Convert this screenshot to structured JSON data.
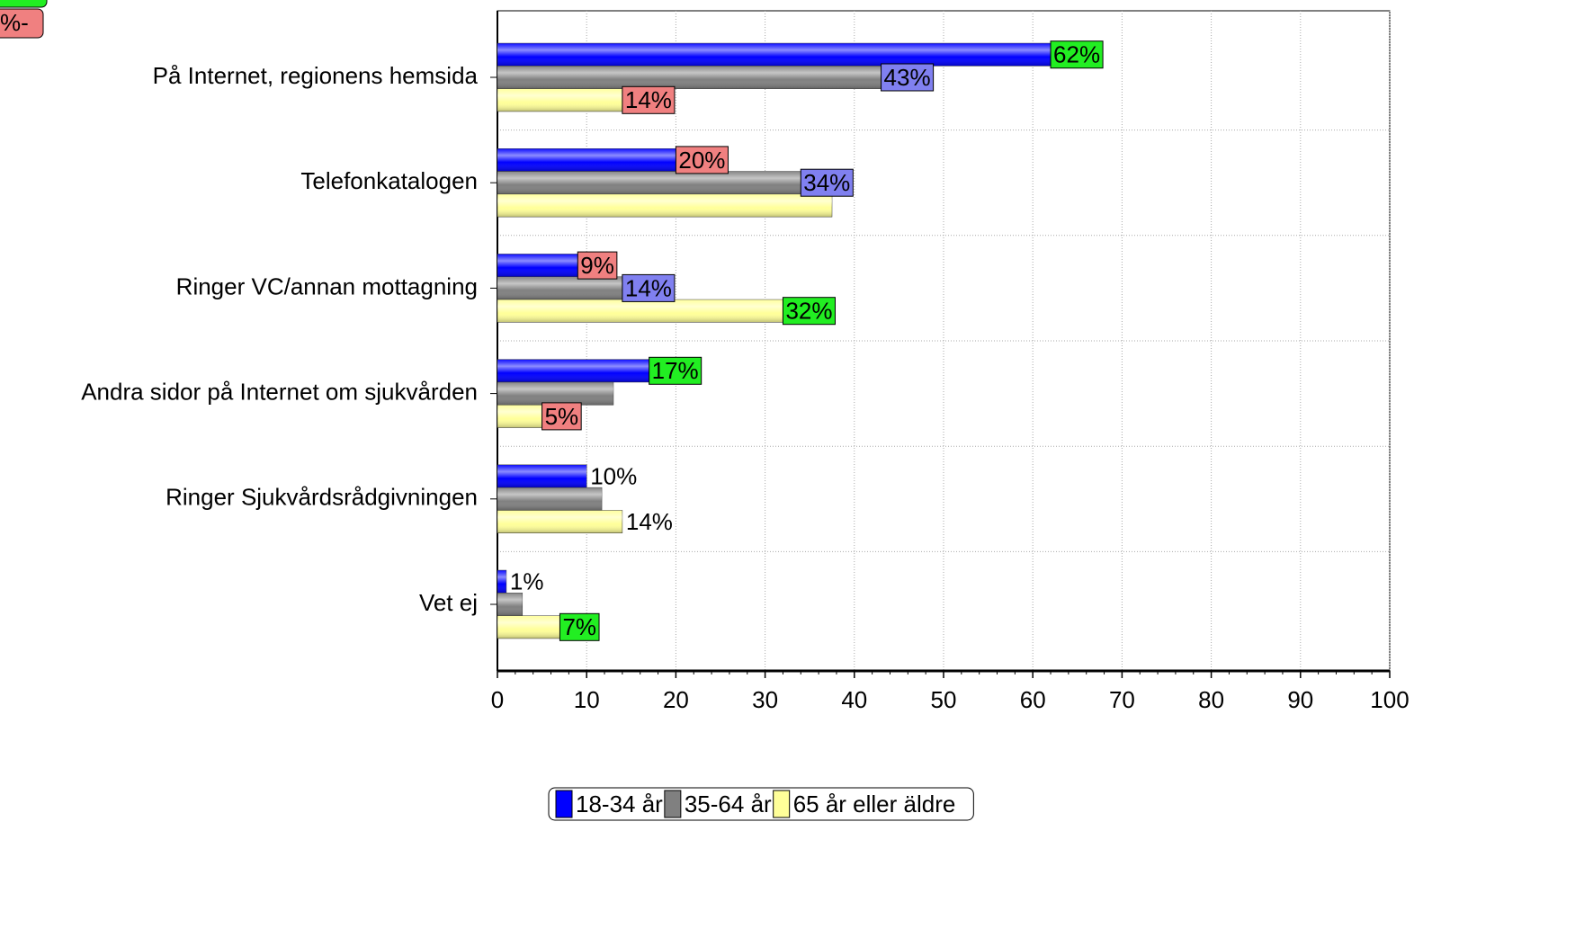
{
  "chart_data": {
    "type": "bar",
    "orientation": "horizontal",
    "categories": [
      "På Internet, regionens hemsida",
      "Telefonkatalogen",
      "Ringer VC/annan mottagning",
      "Andra sidor på Internet om sjukvården",
      "Ringer Sjukvårdsrådgivningen",
      "Vet ej"
    ],
    "series": [
      {
        "name": "18-34 år",
        "color": "#0000ff",
        "values": [
          62,
          20,
          9,
          17,
          10,
          1
        ],
        "value_labels": [
          "62%",
          "20%",
          "9%",
          "17%",
          "10%",
          "1%"
        ],
        "label_fills": [
          "#22ee22",
          "#f08080",
          "#f08080",
          "#22ee22",
          null,
          null
        ],
        "label_text_colors": [
          "#000000",
          "#000000",
          "#000000",
          "#000000",
          "#0000ff",
          "#0000ff"
        ]
      },
      {
        "name": "35-64 år",
        "color": "#808080",
        "values": [
          43,
          34,
          14,
          13,
          11.7,
          2.8
        ],
        "value_labels": [
          "43%",
          "34%",
          "14%",
          null,
          null,
          null
        ],
        "label_fills": [
          "#8080f0",
          "#8080f0",
          "#8080f0",
          null,
          null,
          null
        ],
        "label_text_colors": [
          "#ffffff",
          "#ffffff",
          "#ffffff",
          null,
          null,
          null
        ]
      },
      {
        "name": "65 år eller äldre",
        "color": "#ffff99",
        "values": [
          14,
          37.5,
          32,
          5,
          14,
          7
        ],
        "value_labels": [
          "14%",
          null,
          "32%",
          "5%",
          "14%",
          "7%"
        ],
        "label_fills": [
          "#f08080",
          null,
          "#22ee22",
          "#f08080",
          null,
          "#22ee22"
        ],
        "label_text_colors": [
          "#000000",
          null,
          "#000000",
          "#000000",
          "#000000",
          "#000000"
        ]
      }
    ],
    "xlim": [
      0,
      100
    ],
    "xticks": [
      0,
      10,
      20,
      30,
      40,
      50,
      60,
      70,
      80,
      90,
      100
    ],
    "grid": true,
    "legend": "bottom",
    "key": [
      {
        "label": "%-",
        "color": "#f08080"
      }
    ]
  }
}
